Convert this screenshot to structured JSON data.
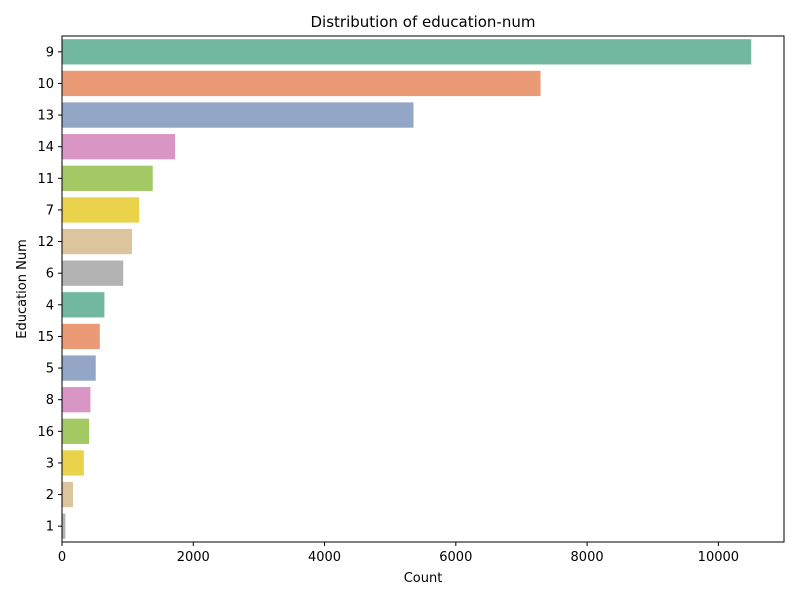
{
  "chart_data": {
    "type": "bar",
    "orientation": "horizontal",
    "title": "Distribution of education-num",
    "xlabel": "Count",
    "ylabel": "Education Num",
    "categories": [
      "9",
      "10",
      "13",
      "14",
      "11",
      "7",
      "12",
      "6",
      "4",
      "15",
      "5",
      "8",
      "16",
      "3",
      "2",
      "1"
    ],
    "values": [
      10501,
      7291,
      5355,
      1723,
      1382,
      1175,
      1067,
      933,
      646,
      576,
      514,
      433,
      413,
      333,
      168,
      51
    ],
    "colors": [
      "#72b8a0",
      "#eb9a76",
      "#94a6c6",
      "#d996c4",
      "#a2c964",
      "#ead24a",
      "#dcc49c",
      "#b3b3b3",
      "#72b8a0",
      "#eb9a76",
      "#94a6c6",
      "#d996c4",
      "#a2c964",
      "#ead24a",
      "#dcc49c",
      "#b3b3b3"
    ],
    "xlim": [
      0,
      11000
    ],
    "xticks": [
      0,
      2000,
      4000,
      6000,
      8000,
      10000
    ],
    "grid": false,
    "legend": "none"
  }
}
